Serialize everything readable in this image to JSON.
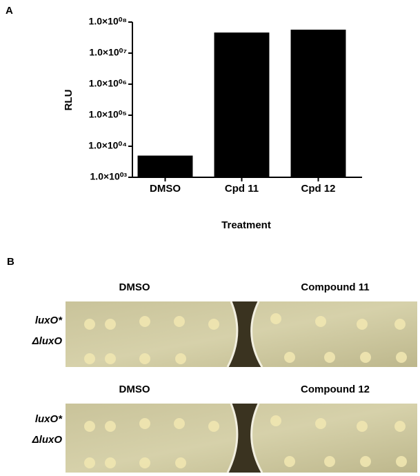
{
  "chart_data": {
    "type": "bar",
    "panel_label": "A",
    "categories": [
      "DMSO",
      "Cpd 11",
      "Cpd 12"
    ],
    "values": [
      5000,
      46000000,
      57000000
    ],
    "color": "#000000",
    "xlabel": "Treatment",
    "ylabel": "RLU",
    "ylog": true,
    "ylim": [
      1000,
      100000000
    ],
    "yticks": [
      {
        "value": 1000,
        "label": "1.0×10⁰³"
      },
      {
        "value": 10000,
        "label": "1.0×10⁰⁴"
      },
      {
        "value": 100000,
        "label": "1.0×10⁰⁵"
      },
      {
        "value": 1000000,
        "label": "1.0×10⁰⁶"
      },
      {
        "value": 10000000,
        "label": "1.0×10⁰⁷"
      },
      {
        "value": 100000000,
        "label": "1.0×10⁰⁸"
      }
    ]
  },
  "panel_b": {
    "panel_label": "B",
    "rows": [
      {
        "left_title": "DMSO",
        "right_title": "Compound 11",
        "strain_labels": [
          "luxO*",
          "ΔluxO"
        ]
      },
      {
        "left_title": "DMSO",
        "right_title": "Compound 12",
        "strain_labels": [
          "luxO*",
          "ΔluxO"
        ]
      }
    ]
  }
}
